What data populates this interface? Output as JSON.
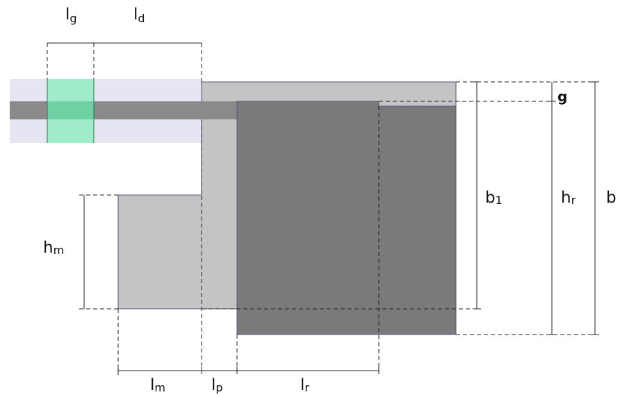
{
  "colors": {
    "background": "#ffffff",
    "air_band": "#e6e6f2",
    "shaft_band": "#8a8a8a",
    "highlight": "#a0ecc8",
    "highlight_center": "#6fd0a4",
    "light_body": "#c4c4c4",
    "dark_body": "#7a7a7a",
    "outline": "#555577",
    "dim_line": "#222222"
  },
  "labels": {
    "lg": {
      "main": "l",
      "sub": "g"
    },
    "ld": {
      "main": "l",
      "sub": "d"
    },
    "g": {
      "main": "g"
    },
    "b1": {
      "main": "b",
      "sub": "1"
    },
    "hr": {
      "main": "h",
      "sub": "r"
    },
    "b": {
      "main": "b"
    },
    "hm": {
      "main": "h",
      "sub": "m"
    },
    "lm": {
      "main": "l",
      "sub": "m"
    },
    "lp": {
      "main": "l",
      "sub": "p"
    },
    "lr": {
      "main": "l",
      "sub": "r"
    }
  }
}
